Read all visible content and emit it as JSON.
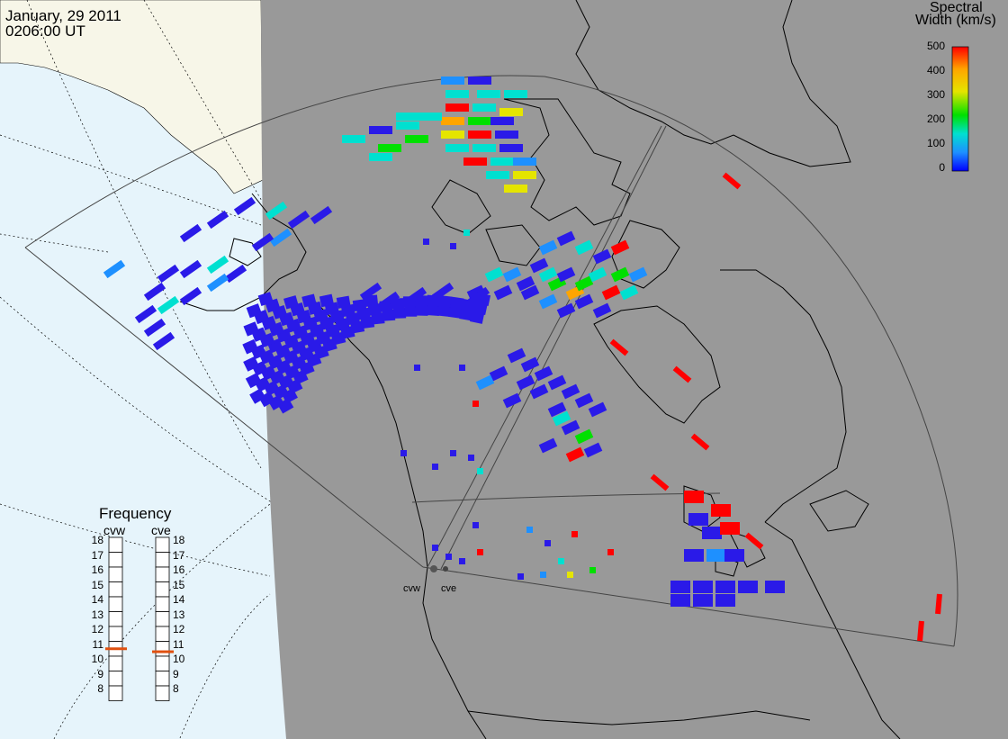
{
  "header": {
    "date": "January, 29 2011",
    "time": "0206:00 UT"
  },
  "colorbar": {
    "title_line1": "Spectral",
    "title_line2": "Width (km/s)",
    "ticks": [
      "500",
      "400",
      "300",
      "200",
      "100",
      "0"
    ],
    "colors": [
      "#ff0000",
      "#ffa500",
      "#e5e500",
      "#00e000",
      "#00e0d0",
      "#1e90ff",
      "#0000ff"
    ]
  },
  "radars": {
    "west": "cvw",
    "east": "cve"
  },
  "frequency": {
    "title": "Frequency",
    "west_label": "cvw",
    "east_label": "cve",
    "scale": [
      "18",
      "17",
      "16",
      "15",
      "14",
      "13",
      "12",
      "11",
      "10",
      "9",
      "8"
    ],
    "west_mhz": 11.0,
    "east_mhz": 10.8,
    "marker_color": "#e05010"
  },
  "colors": {
    "night": "#999999",
    "day_ocean": "#e6f4fb",
    "day_land": "#f7f6e8",
    "coast": "#000000",
    "fov": "#444444"
  }
}
